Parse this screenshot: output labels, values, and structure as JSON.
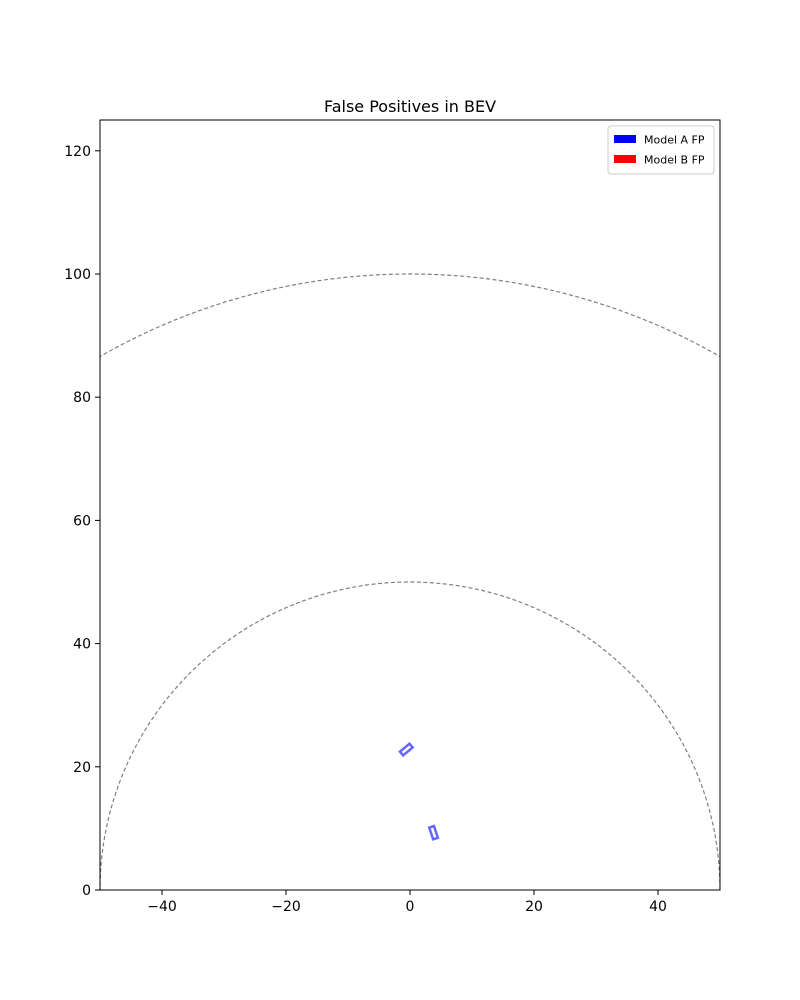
{
  "chart_data": {
    "type": "scatter",
    "title": "False Positives in BEV",
    "xlabel": "",
    "ylabel": "",
    "xlim": [
      -50,
      50
    ],
    "ylim": [
      0,
      125
    ],
    "x_ticks": [
      -40,
      -20,
      0,
      20,
      40
    ],
    "y_ticks": [
      0,
      20,
      40,
      60,
      80,
      100,
      120
    ],
    "x_tick_labels": [
      "−40",
      "−20",
      "0",
      "20",
      "40"
    ],
    "y_tick_labels": [
      "0",
      "20",
      "40",
      "60",
      "80",
      "100",
      "120"
    ],
    "grid": false,
    "range_rings": [
      50,
      100
    ],
    "range_ring_color": "#808080",
    "legend": {
      "position": "top-right",
      "entries": [
        {
          "label": "Model A FP",
          "color": "#0000ff"
        },
        {
          "label": "Model B FP",
          "color": "#ff0000"
        }
      ]
    },
    "series": [
      {
        "name": "Model A FP",
        "color": "#0000ff",
        "boxes": [
          {
            "x": -0.6,
            "y": 22.8,
            "length": 2.0,
            "width": 0.8,
            "yaw_deg": 40
          },
          {
            "x": 3.8,
            "y": 9.3,
            "length": 2.0,
            "width": 0.8,
            "yaw_deg": -72
          }
        ]
      },
      {
        "name": "Model B FP",
        "color": "#ff0000",
        "boxes": []
      }
    ]
  }
}
